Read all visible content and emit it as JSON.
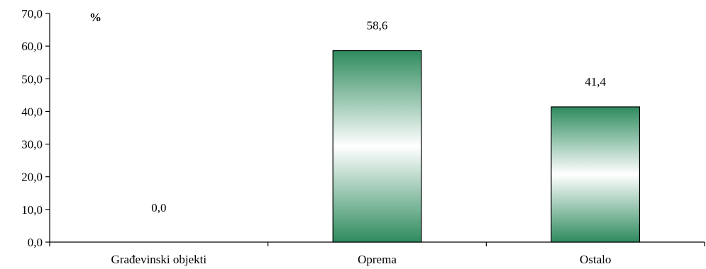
{
  "chart_data": {
    "type": "bar",
    "unit_label": "%",
    "categories": [
      "Građevinski objekti",
      "Oprema",
      "Ostalo"
    ],
    "values": [
      0.0,
      58.6,
      41.4
    ],
    "data_labels": [
      "0,0",
      "58,6",
      "41,4"
    ],
    "y_ticks": [
      0,
      10,
      20,
      30,
      40,
      50,
      60,
      70
    ],
    "y_tick_labels": [
      "0,0",
      "10,0",
      "20,0",
      "30,0",
      "40,0",
      "50,0",
      "60,0",
      "70,0"
    ],
    "ylim": [
      0,
      70
    ],
    "grid": false,
    "legend": "none",
    "colors": {
      "bar_edge": "#2e8b5e",
      "bar_center": "#ffffff",
      "outline": "#000000"
    }
  }
}
